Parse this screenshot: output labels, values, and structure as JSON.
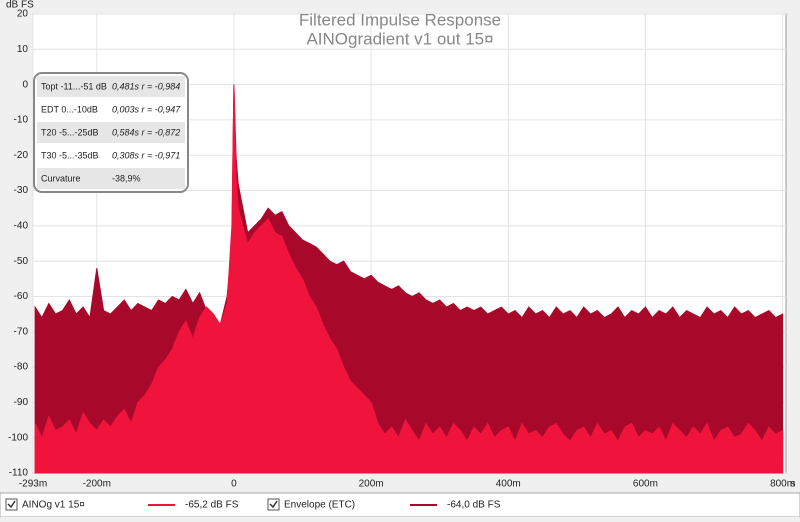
{
  "chart_data": {
    "type": "area",
    "title": "Filtered Impulse Response",
    "subtitle": "AINOgradient v1 out 15¤",
    "y_label": "dB FS",
    "x_label": "s",
    "xlim": [
      -293,
      805
    ],
    "ylim": [
      -110,
      20
    ],
    "xticks": [
      {
        "value": -293,
        "label": "-293m"
      },
      {
        "value": -200,
        "label": "-200m"
      },
      0,
      {
        "value": 200,
        "label": "200m"
      },
      {
        "value": 400,
        "label": "400m"
      },
      {
        "value": 600,
        "label": "600m"
      },
      {
        "value": 800,
        "label": "800m"
      }
    ],
    "yticks": [
      20,
      10,
      0,
      -10,
      -20,
      -30,
      -40,
      -50,
      -60,
      -70,
      -80,
      -90,
      -100,
      -110
    ],
    "grid": true,
    "x": [
      -290,
      -280,
      -270,
      -260,
      -250,
      -240,
      -230,
      -220,
      -210,
      -200,
      -190,
      -180,
      -170,
      -160,
      -150,
      -140,
      -130,
      -120,
      -110,
      -100,
      -90,
      -80,
      -70,
      -60,
      -50,
      -40,
      -30,
      -20,
      -10,
      -3,
      0,
      3,
      6,
      10,
      20,
      30,
      40,
      50,
      60,
      70,
      80,
      90,
      100,
      110,
      120,
      130,
      140,
      150,
      160,
      170,
      180,
      190,
      200,
      210,
      220,
      230,
      240,
      250,
      260,
      270,
      280,
      290,
      300,
      310,
      320,
      330,
      340,
      350,
      360,
      370,
      380,
      390,
      400,
      410,
      420,
      430,
      440,
      450,
      460,
      470,
      480,
      490,
      500,
      510,
      520,
      530,
      540,
      550,
      560,
      570,
      580,
      590,
      600,
      610,
      620,
      630,
      640,
      650,
      660,
      670,
      680,
      690,
      700,
      710,
      720,
      730,
      740,
      750,
      760,
      770,
      780,
      790,
      800
    ],
    "series": [
      {
        "name": "Envelope (ETC)",
        "color": "#a8082a",
        "readout": "-64,0 dB FS",
        "values": [
          -63,
          -66,
          -62,
          -65,
          -64,
          -61,
          -65,
          -63,
          -66,
          -52,
          -64,
          -65,
          -63,
          -61,
          -64,
          -62,
          -63,
          -64,
          -61,
          -62,
          -60,
          -61,
          -58,
          -62,
          -59,
          -64,
          -66,
          -68,
          -60,
          -45,
          0,
          -20,
          -28,
          -32,
          -42,
          -40,
          -38,
          -35,
          -37,
          -36,
          -40,
          -42,
          -44,
          -45,
          -46,
          -48,
          -50,
          -51,
          -50,
          -53,
          -54,
          -55,
          -54,
          -56,
          -57,
          -58,
          -57,
          -59,
          -60,
          -59,
          -61,
          -62,
          -61,
          -63,
          -62,
          -64,
          -63,
          -64,
          -63,
          -65,
          -64,
          -63,
          -65,
          -64,
          -66,
          -63,
          -65,
          -64,
          -66,
          -63,
          -65,
          -64,
          -66,
          -63,
          -65,
          -64,
          -66,
          -65,
          -63,
          -66,
          -64,
          -65,
          -63,
          -66,
          -64,
          -65,
          -63,
          -66,
          -64,
          -65,
          -66,
          -63,
          -65,
          -64,
          -66,
          -63,
          -65,
          -64,
          -66,
          -65,
          -64,
          -66,
          -65
        ]
      },
      {
        "name": "AINOg v1 15¤",
        "color": "#f0143c",
        "readout": "-65,2 dB FS",
        "values": [
          -96,
          -100,
          -94,
          -98,
          -97,
          -95,
          -99,
          -93,
          -96,
          -98,
          -95,
          -97,
          -94,
          -92,
          -96,
          -90,
          -88,
          -85,
          -80,
          -78,
          -75,
          -70,
          -67,
          -72,
          -66,
          -63,
          -65,
          -68,
          -62,
          -40,
          0,
          -25,
          -35,
          -38,
          -45,
          -42,
          -40,
          -38,
          -42,
          -43,
          -48,
          -52,
          -55,
          -60,
          -63,
          -68,
          -72,
          -75,
          -80,
          -84,
          -86,
          -88,
          -90,
          -96,
          -99,
          -97,
          -100,
          -95,
          -98,
          -101,
          -96,
          -99,
          -97,
          -100,
          -96,
          -98,
          -101,
          -97,
          -99,
          -96,
          -100,
          -98,
          -97,
          -101,
          -96,
          -99,
          -98,
          -100,
          -97,
          -96,
          -99,
          -101,
          -98,
          -97,
          -100,
          -96,
          -99,
          -98,
          -101,
          -97,
          -96,
          -100,
          -98,
          -99,
          -97,
          -101,
          -96,
          -98,
          -100,
          -97,
          -99,
          -96,
          -101,
          -98,
          -97,
          -100,
          -99,
          -96,
          -98,
          -101,
          -97,
          -99,
          -98
        ]
      }
    ]
  },
  "stats_table": {
    "rows": [
      [
        "Topt -11...-51 dB",
        "0,481s r = -0,984"
      ],
      [
        "EDT  0...-10dB",
        "0,003s r = -0,947"
      ],
      [
        "T20 -5...-25dB",
        "0,584s r = -0,872"
      ],
      [
        "T30 -5...-35dB",
        "0,308s r = -0,971"
      ],
      [
        "Curvature",
        "-38,9%"
      ]
    ]
  }
}
